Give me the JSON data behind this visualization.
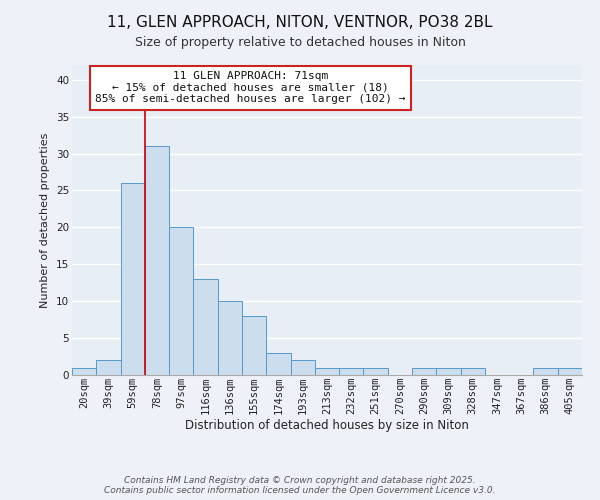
{
  "title1": "11, GLEN APPROACH, NITON, VENTNOR, PO38 2BL",
  "title2": "Size of property relative to detached houses in Niton",
  "xlabel": "Distribution of detached houses by size in Niton",
  "ylabel": "Number of detached properties",
  "bar_labels": [
    "20sqm",
    "39sqm",
    "59sqm",
    "78sqm",
    "97sqm",
    "116sqm",
    "136sqm",
    "155sqm",
    "174sqm",
    "193sqm",
    "213sqm",
    "232sqm",
    "251sqm",
    "270sqm",
    "290sqm",
    "309sqm",
    "328sqm",
    "347sqm",
    "367sqm",
    "386sqm",
    "405sqm"
  ],
  "bar_values": [
    1,
    2,
    26,
    31,
    20,
    13,
    10,
    8,
    3,
    2,
    1,
    1,
    1,
    0,
    1,
    1,
    1,
    0,
    0,
    1,
    1
  ],
  "bar_color": "#ccdded",
  "bar_edge_color": "#5599cc",
  "ylim": [
    0,
    42
  ],
  "yticks": [
    0,
    5,
    10,
    15,
    20,
    25,
    30,
    35,
    40
  ],
  "red_line_x": 2.5,
  "annotation_title": "11 GLEN APPROACH: 71sqm",
  "annotation_line1": "← 15% of detached houses are smaller (18)",
  "annotation_line2": "85% of semi-detached houses are larger (102) →",
  "footer1": "Contains HM Land Registry data © Crown copyright and database right 2025.",
  "footer2": "Contains public sector information licensed under the Open Government Licence v3.0.",
  "bg_color": "#eef2f8",
  "plot_bg_color": "#e8eef6",
  "grid_color": "#ffffff",
  "title1_fontsize": 11,
  "title2_fontsize": 9,
  "xlabel_fontsize": 8.5,
  "ylabel_fontsize": 8,
  "tick_fontsize": 7.5,
  "annotation_fontsize": 8,
  "footer_fontsize": 6.5
}
